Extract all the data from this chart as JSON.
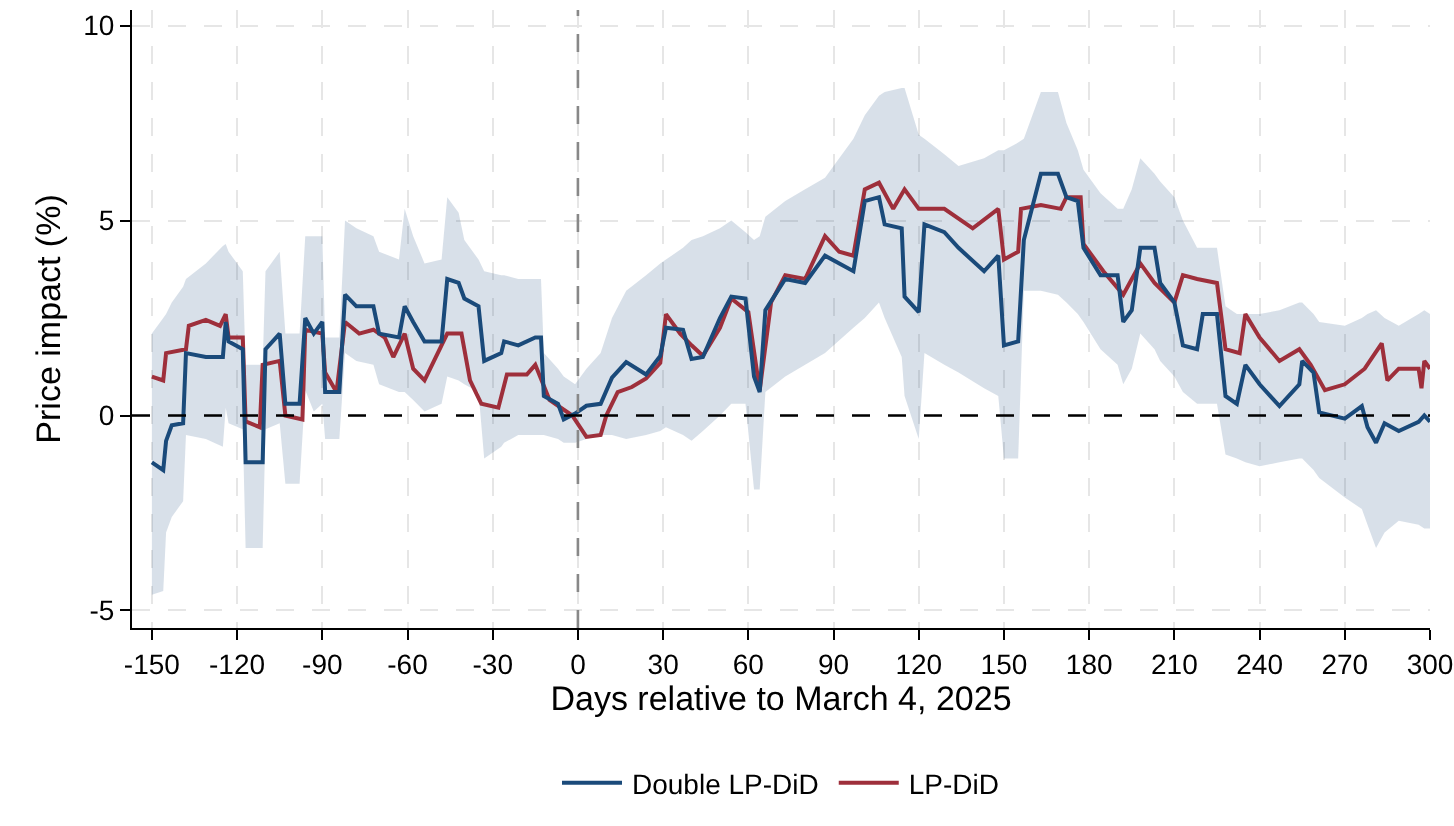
{
  "chart_data": {
    "type": "line",
    "xlabel": "Days relative to March 4, 2025",
    "ylabel": "Price impact (%)",
    "xlim": [
      -157,
      300
    ],
    "xticks": [
      -150,
      -120,
      -90,
      -60,
      -30,
      0,
      30,
      60,
      90,
      120,
      150,
      180,
      210,
      240,
      270,
      300
    ],
    "ylim": [
      -5.45,
      10.4
    ],
    "yticks": [
      -5,
      0,
      5,
      10
    ],
    "grid": true,
    "legend": "bottom",
    "ref_lines": [
      {
        "axis": "y",
        "value": 0,
        "color": "#000000",
        "line_style": "dashed"
      },
      {
        "axis": "x",
        "value": 0,
        "color": "#888888",
        "line_style": "dashed"
      }
    ],
    "series": [
      {
        "name": "LP-DiD",
        "color": "#9e2f3b",
        "x": [
          -150,
          -146,
          -145,
          -138,
          -137,
          -131,
          -126,
          -124,
          -123,
          -118,
          -117,
          -112,
          -111,
          -105,
          -103,
          -97,
          -96,
          -90,
          -89,
          -85,
          -82,
          -77,
          -72,
          -68,
          -65,
          -61,
          -58,
          -54,
          -46,
          -41,
          -38,
          -34,
          -28,
          -25,
          -18,
          -15,
          -10,
          -2,
          3,
          8,
          10,
          14,
          19,
          24,
          29,
          31,
          36,
          40,
          44,
          50,
          54,
          60,
          64,
          68,
          73,
          80,
          87,
          92,
          97,
          101,
          106,
          111,
          115,
          120,
          129,
          139,
          148,
          150,
          155,
          156,
          163,
          170,
          172,
          177,
          178,
          185,
          192,
          198,
          203,
          210,
          213,
          218,
          225,
          228,
          233,
          235,
          240,
          247,
          254,
          258,
          263,
          270,
          277,
          283,
          285,
          289,
          296,
          297,
          298,
          300
        ],
        "values": [
          1.0,
          0.9,
          1.6,
          1.7,
          2.3,
          2.45,
          2.3,
          2.6,
          2.0,
          2.0,
          -0.15,
          -0.3,
          1.3,
          1.4,
          0,
          -0.1,
          2.2,
          2.1,
          1.1,
          0.6,
          2.4,
          2.1,
          2.2,
          2.0,
          1.5,
          2.1,
          1.2,
          0.9,
          2.1,
          2.1,
          0.9,
          0.3,
          0.2,
          1.05,
          1.05,
          1.3,
          0.4,
          0,
          -0.55,
          -0.5,
          0,
          0.6,
          0.73,
          0.95,
          1.35,
          2.6,
          2.1,
          1.8,
          1.53,
          2.25,
          3.0,
          2.65,
          0.64,
          2.9,
          3.6,
          3.5,
          4.6,
          4.2,
          4.1,
          5.8,
          5.97,
          5.3,
          5.8,
          5.3,
          5.3,
          4.8,
          5.3,
          4.0,
          4.2,
          5.3,
          5.4,
          5.3,
          5.6,
          5.6,
          4.4,
          3.7,
          3.1,
          3.9,
          3.4,
          2.9,
          3.6,
          3.5,
          3.4,
          1.7,
          1.6,
          2.6,
          2.0,
          1.4,
          1.7,
          1.3,
          0.65,
          0.8,
          1.2,
          1.85,
          0.9,
          1.2,
          1.2,
          0.7,
          1.4,
          1.2
        ]
      },
      {
        "name": "Double LP-DiD",
        "color": "#1a4a7a",
        "x": [
          -150,
          -146,
          -145,
          -143,
          -139,
          -138,
          -131,
          -125,
          -124,
          -123,
          -118,
          -117,
          -111,
          -110,
          -105,
          -103,
          -98,
          -96,
          -93,
          -90,
          -89,
          -84,
          -82,
          -78,
          -72,
          -70,
          -63,
          -61,
          -58,
          -54,
          -48,
          -46,
          -42,
          -40,
          -35,
          -33,
          -27,
          -26,
          -21,
          -15,
          -13,
          -12,
          -7,
          -5,
          -1,
          3,
          8,
          12,
          17,
          24,
          29,
          31,
          37,
          40,
          44,
          50,
          54,
          59,
          62,
          64,
          66,
          73,
          80,
          87,
          97,
          101,
          106,
          108,
          114,
          115,
          120,
          122,
          129,
          134,
          143,
          148,
          150,
          155,
          157,
          163,
          169,
          172,
          176,
          178,
          184,
          190,
          192,
          195,
          198,
          203,
          205,
          210,
          213,
          218,
          220,
          225,
          228,
          232,
          235,
          240,
          247,
          254,
          255,
          259,
          261,
          270,
          276,
          278,
          281,
          284,
          289,
          296,
          298,
          300
        ],
        "values": [
          -1.2,
          -1.4,
          -0.65,
          -0.25,
          -0.2,
          1.6,
          1.5,
          1.5,
          2.4,
          1.9,
          1.7,
          -1.2,
          -1.2,
          1.7,
          2.1,
          0.3,
          0.3,
          2.5,
          2.1,
          2.4,
          0.6,
          0.6,
          3.1,
          2.8,
          2.8,
          2.1,
          2.0,
          2.8,
          2.4,
          1.9,
          1.9,
          3.5,
          3.4,
          3.0,
          2.8,
          1.4,
          1.6,
          1.9,
          1.8,
          2.0,
          2.0,
          0.5,
          0.3,
          -0.1,
          0.05,
          0.25,
          0.3,
          0.97,
          1.37,
          1.05,
          1.53,
          2.25,
          2.2,
          1.45,
          1.5,
          2.5,
          3.05,
          3.0,
          1.0,
          0.6,
          2.7,
          3.5,
          3.4,
          4.1,
          3.7,
          5.5,
          5.6,
          4.9,
          4.8,
          3.05,
          2.65,
          4.9,
          4.7,
          4.3,
          3.7,
          4.1,
          1.8,
          1.9,
          4.5,
          6.2,
          6.2,
          5.6,
          5.5,
          4.3,
          3.6,
          3.6,
          2.4,
          2.7,
          4.3,
          4.3,
          3.4,
          2.9,
          1.8,
          1.7,
          2.6,
          2.6,
          0.5,
          0.3,
          1.3,
          0.8,
          0.24,
          0.8,
          1.4,
          1.1,
          0.08,
          -0.08,
          0.24,
          -0.3,
          -0.7,
          -0.2,
          -0.4,
          -0.16,
          0,
          -0.16
        ],
        "lower": [
          -4.6,
          -4.5,
          -3.0,
          -2.6,
          -2.2,
          -0.5,
          -0.6,
          -0.8,
          0.2,
          -0.2,
          -0.35,
          -3.4,
          -3.4,
          -0.35,
          -0.2,
          -1.75,
          -1.75,
          0.65,
          0.1,
          0.3,
          -0.6,
          -0.6,
          1.6,
          1.4,
          1.3,
          0.8,
          0.6,
          0.6,
          0.4,
          0.1,
          0.3,
          1.0,
          0.9,
          0.8,
          0.6,
          -1.1,
          -0.8,
          -0.7,
          -0.5,
          -0.5,
          -0.5,
          -0.5,
          -0.6,
          -0.7,
          -0.7,
          -0.6,
          -0.5,
          -0.5,
          -0.6,
          -0.5,
          -0.4,
          -0.3,
          -0.5,
          -0.65,
          -0.4,
          0.0,
          0.3,
          0.3,
          -1.9,
          -1.9,
          0.6,
          1.0,
          1.3,
          1.6,
          2.25,
          2.5,
          2.9,
          2.5,
          1.5,
          0.5,
          -0.6,
          1.6,
          1.3,
          1.1,
          0.7,
          0.5,
          -1.1,
          -1.1,
          3.2,
          3.2,
          3.1,
          2.9,
          2.6,
          2.4,
          1.7,
          1.3,
          0.8,
          1.2,
          2.1,
          1.7,
          1.4,
          1.0,
          0.6,
          0.3,
          0.3,
          0.3,
          -1.0,
          -1.1,
          -1.2,
          -1.3,
          -1.2,
          -1.1,
          -1.1,
          -1.4,
          -1.6,
          -2.1,
          -2.4,
          -2.8,
          -3.4,
          -3.0,
          -2.7,
          -2.8,
          -2.9,
          -2.9
        ],
        "upper": [
          2.1,
          2.5,
          2.6,
          2.9,
          3.3,
          3.5,
          3.9,
          4.35,
          4.4,
          4.2,
          3.7,
          1.3,
          1.3,
          3.7,
          4.2,
          2.1,
          2.1,
          4.6,
          4.6,
          4.6,
          2.0,
          2.0,
          5.0,
          4.8,
          4.6,
          4.2,
          4.0,
          5.3,
          4.6,
          3.9,
          4.0,
          5.6,
          5.2,
          4.5,
          4.0,
          3.7,
          3.6,
          3.6,
          3.5,
          3.5,
          3.5,
          1.6,
          1.2,
          1.0,
          0.8,
          1.2,
          1.6,
          2.5,
          3.2,
          3.6,
          3.9,
          4.0,
          4.3,
          4.5,
          4.6,
          4.8,
          5.0,
          4.7,
          4.5,
          4.6,
          5.1,
          5.5,
          5.8,
          6.1,
          7.1,
          7.7,
          8.2,
          8.3,
          8.4,
          8.4,
          7.2,
          7.1,
          6.7,
          6.4,
          6.6,
          6.8,
          6.8,
          7.0,
          7.1,
          8.3,
          8.3,
          7.5,
          6.8,
          6.3,
          5.7,
          5.3,
          5.3,
          5.8,
          6.6,
          6.2,
          6.0,
          5.6,
          5.0,
          4.3,
          4.3,
          4.3,
          2.8,
          2.6,
          2.6,
          2.6,
          2.7,
          2.9,
          2.9,
          2.6,
          2.4,
          2.3,
          2.5,
          2.6,
          2.7,
          2.5,
          2.3,
          2.6,
          2.7,
          2.6
        ]
      }
    ]
  }
}
